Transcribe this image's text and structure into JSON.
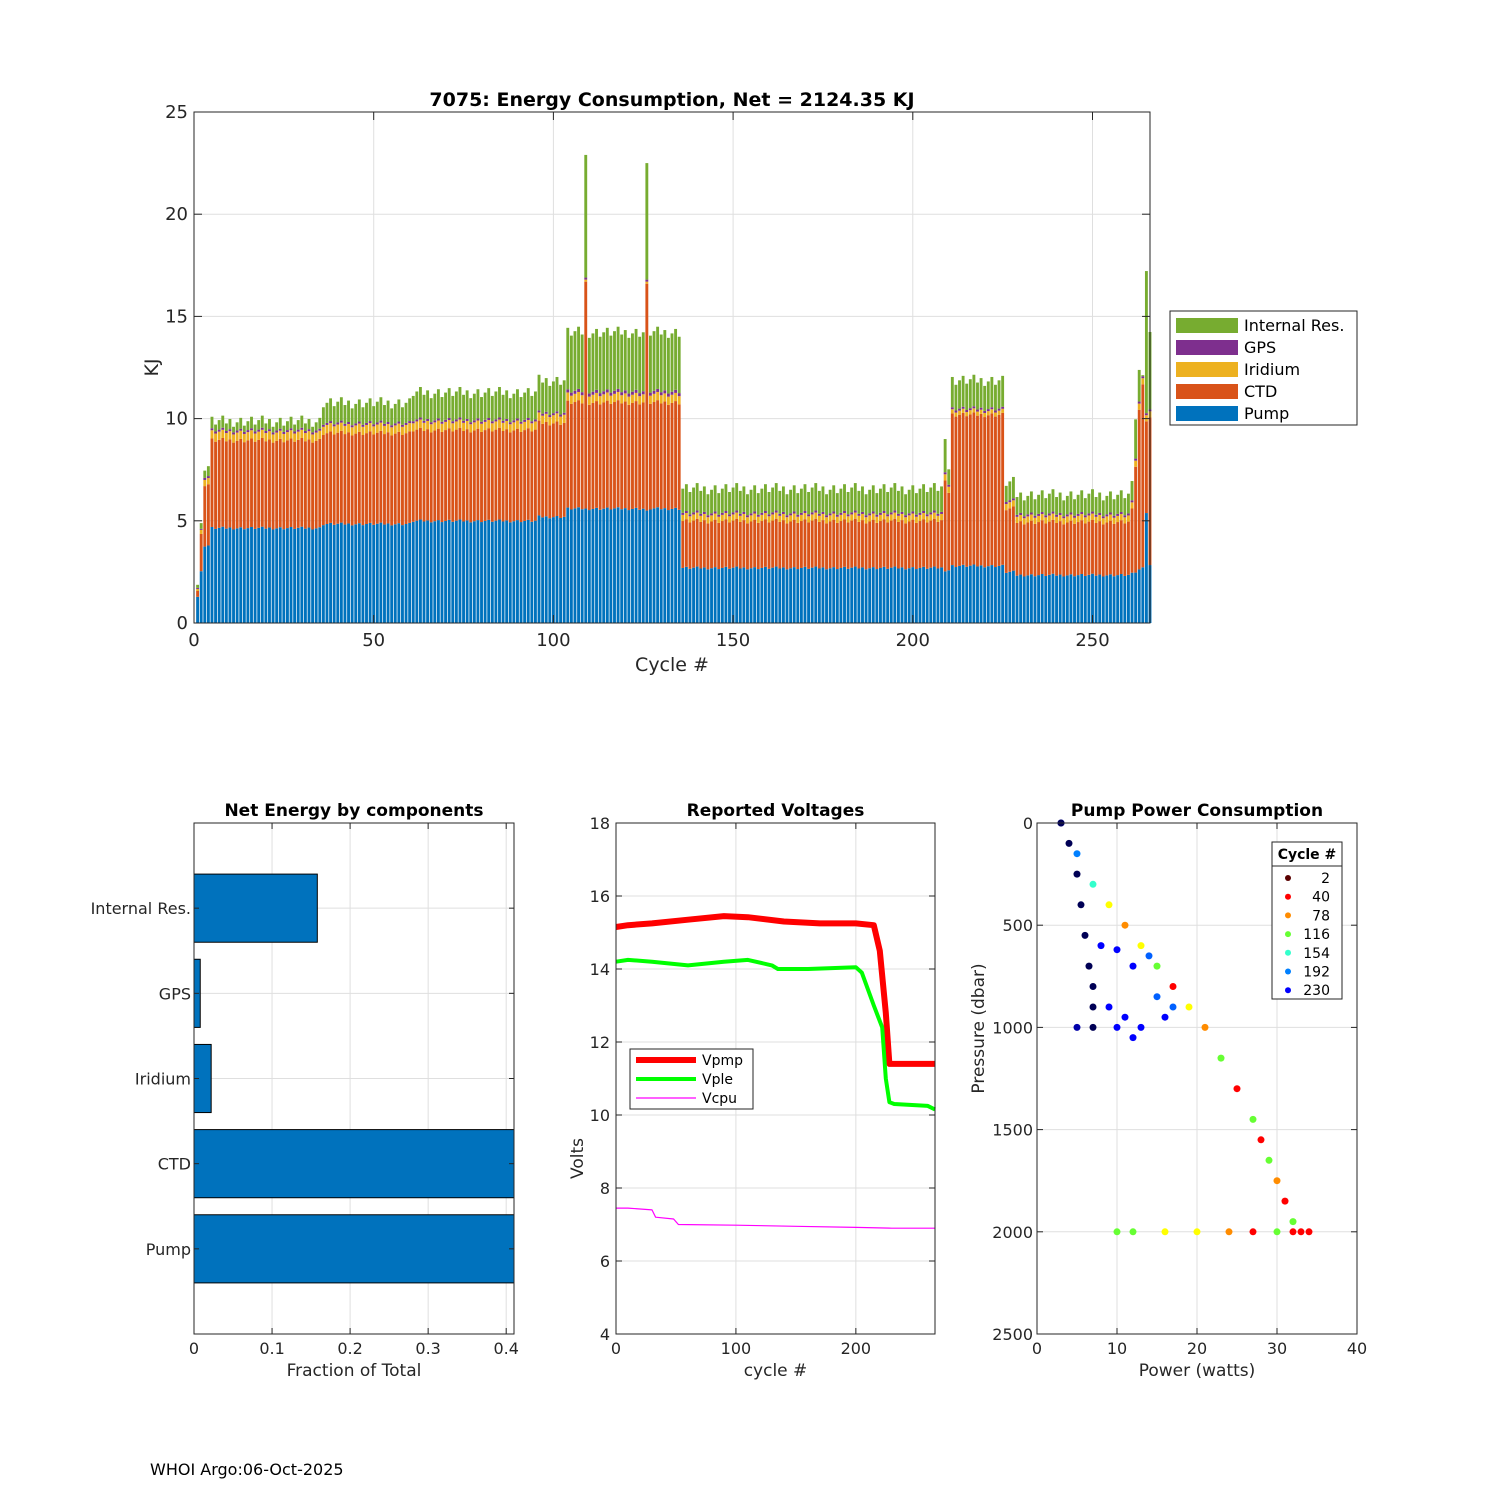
{
  "footer": "WHOI Argo:06-Oct-2025",
  "colors": {
    "pump": "#0072BD",
    "ctd": "#D95319",
    "iridium": "#EDB120",
    "gps": "#7E2F8E",
    "internal": "#77AC30",
    "vpmp": "#FF0000",
    "vple": "#00FF00",
    "vcpu": "#FF00FF",
    "grid": "#DFDFDF",
    "axis": "#262626"
  },
  "chart_data": [
    {
      "type": "bar",
      "stacked": true,
      "title": "7075: Energy Consumption,  Net = 2124.35 KJ",
      "xlabel": "Cycle #",
      "ylabel": "KJ",
      "xlim": [
        0,
        266
      ],
      "ylim": [
        0,
        25
      ],
      "xticks": [
        0,
        50,
        100,
        150,
        200,
        250
      ],
      "yticks": [
        0,
        5,
        10,
        15,
        20,
        25
      ],
      "grid": true,
      "legend_position": "right",
      "legend": [
        "Internal Res.",
        "GPS",
        "Iridium",
        "CTD",
        "Pump"
      ],
      "segments": [
        {
          "from": 1,
          "to": 1,
          "pump": 1.3,
          "ctd": 0.3,
          "iridium": 0.1,
          "gps": 0.05,
          "internal": 0.2
        },
        {
          "from": 2,
          "to": 2,
          "pump": 2.5,
          "ctd": 1.8,
          "iridium": 0.2,
          "gps": 0.05,
          "internal": 0.2
        },
        {
          "from": 3,
          "to": 4,
          "pump": 3.8,
          "ctd": 3.0,
          "iridium": 0.3,
          "gps": 0.1,
          "internal": 0.5
        },
        {
          "from": 5,
          "to": 35,
          "pump": 4.65,
          "ctd": 4.3,
          "iridium": 0.4,
          "gps": 0.1,
          "internal": 0.45
        },
        {
          "from": 36,
          "to": 60,
          "pump": 4.85,
          "ctd": 4.45,
          "iridium": 0.4,
          "gps": 0.1,
          "internal": 1.0
        },
        {
          "from": 61,
          "to": 95,
          "pump": 5.0,
          "ctd": 4.45,
          "iridium": 0.4,
          "gps": 0.1,
          "internal": 1.35
        },
        {
          "from": 96,
          "to": 103,
          "pump": 5.2,
          "ctd": 4.6,
          "iridium": 0.4,
          "gps": 0.1,
          "internal": 1.6
        },
        {
          "from": 104,
          "to": 135,
          "pump": 5.6,
          "ctd": 5.2,
          "iridium": 0.4,
          "gps": 0.15,
          "internal": 2.9
        },
        {
          "from": 136,
          "to": 208,
          "pump": 2.7,
          "ctd": 2.3,
          "iridium": 0.3,
          "gps": 0.1,
          "internal": 1.2
        },
        {
          "from": 209,
          "to": 209,
          "pump": 2.6,
          "ctd": 4.5,
          "iridium": 0.3,
          "gps": 0.1,
          "internal": 1.8
        },
        {
          "from": 210,
          "to": 210,
          "pump": 2.6,
          "ctd": 3.8,
          "iridium": 0.3,
          "gps": 0.1,
          "internal": 0.8
        },
        {
          "from": 211,
          "to": 225,
          "pump": 2.8,
          "ctd": 7.4,
          "iridium": 0.2,
          "gps": 0.1,
          "internal": 1.4
        },
        {
          "from": 226,
          "to": 228,
          "pump": 2.5,
          "ctd": 3.1,
          "iridium": 0.3,
          "gps": 0.1,
          "internal": 0.9
        },
        {
          "from": 229,
          "to": 260,
          "pump": 2.35,
          "ctd": 2.6,
          "iridium": 0.3,
          "gps": 0.1,
          "internal": 0.95
        },
        {
          "from": 261,
          "to": 261,
          "pump": 2.4,
          "ctd": 3.1,
          "iridium": 0.3,
          "gps": 0.1,
          "internal": 0.8
        },
        {
          "from": 262,
          "to": 262,
          "pump": 2.5,
          "ctd": 5.2,
          "iridium": 0.3,
          "gps": 0.1,
          "internal": 2.0
        },
        {
          "from": 263,
          "to": 263,
          "pump": 2.6,
          "ctd": 7.8,
          "iridium": 0.3,
          "gps": 0.1,
          "internal": 1.5
        },
        {
          "from": 264,
          "to": 264,
          "pump": 2.8,
          "ctd": 9.0,
          "iridium": 0.3,
          "gps": 0.1,
          "internal": 0.2
        },
        {
          "from": 265,
          "to": 265,
          "pump": 5.4,
          "ctd": 4.5,
          "iridium": 0.3,
          "gps": 0.1,
          "internal": 7.0
        },
        {
          "from": 266,
          "to": 266,
          "pump": 2.8,
          "ctd": 7.2,
          "iridium": 0.3,
          "gps": 0.1,
          "internal": 3.7
        }
      ],
      "overrides": [
        {
          "cycle": 109,
          "pump": 5.6,
          "ctd": 11.1,
          "iridium": 0.1,
          "gps": 0.1,
          "internal": 6.0
        },
        {
          "cycle": 126,
          "pump": 5.5,
          "ctd": 11.1,
          "iridium": 0.1,
          "gps": 0.1,
          "internal": 5.7
        }
      ]
    },
    {
      "type": "bar",
      "orientation": "horizontal",
      "title": "Net Energy by components",
      "xlabel": "Fraction of Total",
      "xlim": [
        0,
        0.41
      ],
      "xticks": [
        0,
        0.1,
        0.2,
        0.3,
        0.4
      ],
      "xtick_labels": [
        "0",
        "0.1",
        "0.2",
        "0.3",
        "0.4"
      ],
      "categories": [
        "Internal Res.",
        "GPS",
        "Iridium",
        "CTD",
        "Pump"
      ],
      "values": [
        0.158,
        0.008,
        0.022,
        0.42,
        0.41
      ],
      "grid": true
    },
    {
      "type": "line",
      "title": "Reported Voltages",
      "xlabel": "cycle #",
      "ylabel": "Volts",
      "xlim": [
        0,
        266
      ],
      "ylim": [
        4,
        18
      ],
      "xticks": [
        0,
        100,
        200
      ],
      "yticks": [
        4,
        6,
        8,
        10,
        12,
        14,
        16,
        18
      ],
      "grid": true,
      "legend_position": "lower-left",
      "series": [
        {
          "name": "Vpmp",
          "x": [
            0,
            10,
            30,
            60,
            90,
            110,
            140,
            170,
            200,
            215,
            220,
            225,
            228,
            232,
            266
          ],
          "y": [
            15.15,
            15.2,
            15.25,
            15.35,
            15.45,
            15.42,
            15.3,
            15.25,
            15.25,
            15.2,
            14.5,
            12.8,
            11.4,
            11.4,
            11.4
          ]
        },
        {
          "name": "Vple",
          "x": [
            0,
            10,
            30,
            60,
            90,
            110,
            130,
            135,
            160,
            200,
            205,
            215,
            222,
            225,
            228,
            232,
            260,
            266
          ],
          "y": [
            14.2,
            14.25,
            14.2,
            14.1,
            14.2,
            14.25,
            14.1,
            14.0,
            14.0,
            14.05,
            13.9,
            13.0,
            12.4,
            11.0,
            10.35,
            10.3,
            10.25,
            10.15
          ]
        },
        {
          "name": "Vcpu",
          "x": [
            0,
            10,
            30,
            33,
            48,
            52,
            100,
            150,
            200,
            230,
            266
          ],
          "y": [
            7.45,
            7.45,
            7.4,
            7.2,
            7.15,
            7.0,
            6.98,
            6.95,
            6.92,
            6.9,
            6.9
          ]
        }
      ]
    },
    {
      "type": "scatter",
      "title": "Pump Power Consumption",
      "xlabel": "Power (watts)",
      "ylabel": "Pressure (dbar)",
      "xlim": [
        0,
        40
      ],
      "ylim": [
        0,
        2500
      ],
      "y_reversed": true,
      "xticks": [
        0,
        10,
        20,
        30,
        40
      ],
      "yticks": [
        0,
        500,
        1000,
        1500,
        2000,
        2500
      ],
      "grid": true,
      "legend_title": "Cycle #",
      "legend_position": "top-right",
      "legend": [
        {
          "label": "2",
          "color": "#5A0000"
        },
        {
          "label": "40",
          "color": "#FF0000"
        },
        {
          "label": "78",
          "color": "#FF8C00"
        },
        {
          "label": "116",
          "color": "#66FF33"
        },
        {
          "label": "154",
          "color": "#33FFCC"
        },
        {
          "label": "192",
          "color": "#0080FF"
        },
        {
          "label": "230",
          "color": "#0000FF"
        }
      ],
      "groups": [
        {
          "name": "descent-line",
          "points": [
            [
              3,
              0
            ],
            [
              5,
              150
            ],
            [
              7,
              300
            ],
            [
              9,
              400
            ],
            [
              11,
              500
            ],
            [
              13,
              600
            ],
            [
              15,
              700
            ],
            [
              17,
              800
            ],
            [
              19,
              900
            ],
            [
              21,
              1000
            ],
            [
              23,
              1150
            ],
            [
              25,
              1300
            ],
            [
              27,
              1450
            ],
            [
              28,
              1550
            ],
            [
              29,
              1650
            ],
            [
              30,
              1750
            ],
            [
              31,
              1850
            ],
            [
              32,
              1950
            ],
            [
              33,
              2000
            ]
          ],
          "colors": [
            "#0000FF",
            "#0080FF",
            "#33FFCC",
            "#FFFF00",
            "#FF8C00",
            "#FFFF00",
            "#66FF33",
            "#FF0000",
            "#FFFF00",
            "#FF8C00",
            "#66FF33",
            "#FF0000",
            "#66FF33",
            "#FF0000",
            "#66FF33",
            "#FF8C00",
            "#FF0000",
            "#66FF33",
            "#FF0000"
          ]
        },
        {
          "name": "bottom-line",
          "points": [
            [
              10,
              2000
            ],
            [
              12,
              2000
            ],
            [
              16,
              2000
            ],
            [
              20,
              2000
            ],
            [
              24,
              2000
            ],
            [
              27,
              2000
            ],
            [
              30,
              2000
            ],
            [
              32,
              2000
            ],
            [
              34,
              2000
            ]
          ],
          "colors": [
            "#66FF33",
            "#66FF33",
            "#FFFF00",
            "#FFFF00",
            "#FF8C00",
            "#FF0000",
            "#66FF33",
            "#FF0000",
            "#FF0000"
          ]
        },
        {
          "name": "dark-column",
          "points": [
            [
              3,
              0
            ],
            [
              4,
              100
            ],
            [
              5,
              250
            ],
            [
              5.5,
              400
            ],
            [
              6,
              550
            ],
            [
              6.5,
              700
            ],
            [
              7,
              800
            ],
            [
              7,
              900
            ],
            [
              7,
              1000
            ],
            [
              5,
              1000
            ]
          ],
          "colors": [
            "#000055",
            "#000055",
            "#000055",
            "#000055",
            "#000055",
            "#000055",
            "#000055",
            "#000055",
            "#000055",
            "#0000AA"
          ]
        },
        {
          "name": "blue-cloud",
          "points": [
            [
              8,
              600
            ],
            [
              10,
              620
            ],
            [
              12,
              700
            ],
            [
              14,
              650
            ],
            [
              9,
              900
            ],
            [
              11,
              950
            ],
            [
              13,
              1000
            ],
            [
              15,
              850
            ],
            [
              17,
              900
            ],
            [
              16,
              950
            ],
            [
              12,
              1050
            ],
            [
              10,
              1000
            ]
          ],
          "colors": [
            "#0000FF",
            "#0000FF",
            "#0000FF",
            "#0060FF",
            "#0000FF",
            "#0000FF",
            "#0000FF",
            "#0060FF",
            "#0060FF",
            "#0000FF",
            "#0000FF",
            "#0000FF"
          ]
        }
      ]
    }
  ]
}
